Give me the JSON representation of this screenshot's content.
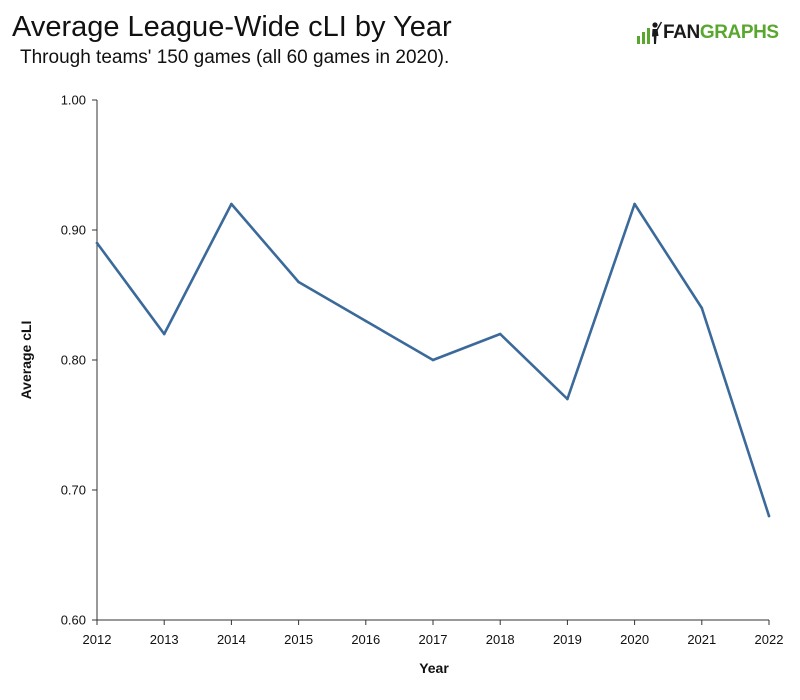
{
  "header": {
    "title": "Average League-Wide cLI by Year",
    "subtitle": "Through teams' 150 games (all 60 games in 2020)."
  },
  "logo": {
    "text_dark": "FAN",
    "text_green": "GRAPHS",
    "icon": "batter-icon",
    "color_dark": "#1a1a1a",
    "color_green": "#5aa72f"
  },
  "chart_data": {
    "type": "line",
    "title": "Average League-Wide cLI by Year",
    "subtitle": "Through teams' 150 games (all 60 games in 2020).",
    "xlabel": "Year",
    "ylabel": "Average cLI",
    "x": [
      2012,
      2013,
      2014,
      2015,
      2016,
      2017,
      2018,
      2019,
      2020,
      2021,
      2022
    ],
    "x_tick_labels": [
      "2012",
      "2013",
      "2014",
      "2015",
      "2016",
      "2017",
      "2018",
      "2019",
      "2020",
      "2021",
      "2022"
    ],
    "series": [
      {
        "values": [
          0.89,
          0.82,
          0.92,
          0.86,
          0.83,
          0.8,
          0.82,
          0.77,
          0.92,
          0.84,
          0.68
        ],
        "color": "#3b6a9a"
      }
    ],
    "xlim": [
      2012,
      2022
    ],
    "ylim": [
      0.6,
      1.0
    ],
    "y_ticks": [
      1.0,
      0.9,
      0.8,
      0.7,
      0.6
    ],
    "y_tick_labels": [
      "1.00",
      "0.90",
      "0.80",
      "0.70",
      "0.60"
    ],
    "grid": false,
    "legend": "none",
    "axis_color": "#333333"
  }
}
